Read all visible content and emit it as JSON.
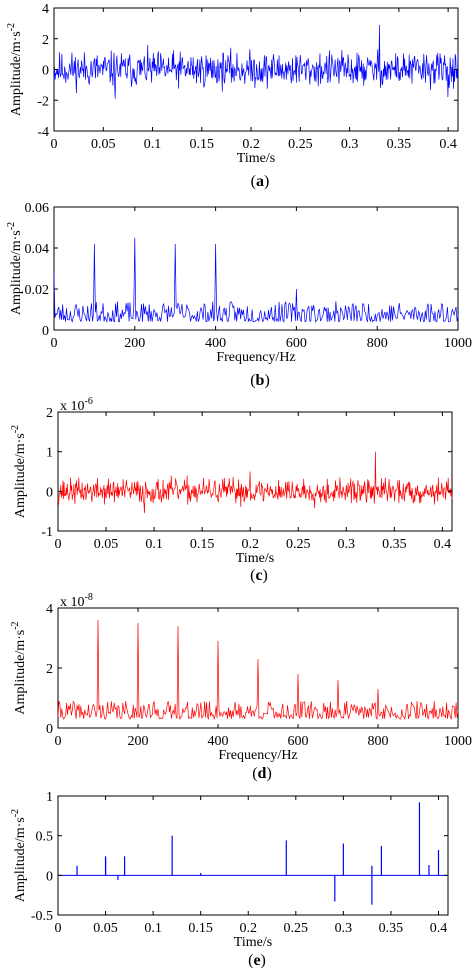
{
  "colors": {
    "blue": "#0000ff",
    "red": "#ff0000",
    "axis": "#000000"
  },
  "chart_data": [
    {
      "type": "line",
      "caption": "a",
      "signal": "noise",
      "color": "#0000ff",
      "xlabel": "Time/s",
      "ylabel": "Amplitude/m·s",
      "ylabel_exp": "-2",
      "multiplier": "",
      "multiplier_exp": "",
      "xlim": [
        0,
        0.41
      ],
      "ylim": [
        -4,
        4
      ],
      "xticks": [
        0,
        0.05,
        0.1,
        0.15,
        0.2,
        0.25,
        0.3,
        0.35,
        0.4
      ],
      "xtick_labels": [
        "0",
        "0.05",
        "0.1",
        "0.15",
        "0.2",
        "0.25",
        "0.3",
        "0.35",
        "0.4"
      ],
      "yticks": [
        -4,
        -2,
        0,
        2,
        4
      ],
      "ytick_labels": [
        "-4",
        "-2",
        "0",
        "2",
        "4"
      ],
      "noise": {
        "n": 720,
        "amp": 0.8,
        "seed": 11
      },
      "peaks": [
        [
          0.33,
          2.9
        ],
        [
          0.062,
          -1.9
        ],
        [
          0.4,
          -1.8
        ]
      ]
    },
    {
      "type": "line",
      "caption": "b",
      "signal": "spectrum",
      "color": "#0000ff",
      "xlabel": "Frequency/Hz",
      "ylabel": "Amplitude/m·s",
      "ylabel_exp": "-2",
      "multiplier": "",
      "multiplier_exp": "",
      "xlim": [
        0,
        1000
      ],
      "ylim": [
        0,
        0.06
      ],
      "xticks": [
        0,
        200,
        400,
        600,
        800,
        1000
      ],
      "xtick_labels": [
        "0",
        "200",
        "400",
        "600",
        "800",
        "1000"
      ],
      "yticks": [
        0,
        0.02,
        0.04,
        0.06
      ],
      "ytick_labels": [
        "0",
        "0.02",
        "0.04",
        "0.06"
      ],
      "noise": {
        "n": 420,
        "base": 0.004,
        "amp": 0.01,
        "seed": 23
      },
      "peaks": [
        [
          0,
          0.028
        ],
        [
          100,
          0.042
        ],
        [
          200,
          0.045
        ],
        [
          300,
          0.042
        ],
        [
          400,
          0.042
        ],
        [
          600,
          0.02
        ]
      ]
    },
    {
      "type": "line",
      "caption": "c",
      "signal": "noise",
      "color": "#ff0000",
      "xlabel": "Time/s",
      "ylabel": "Amplitude/m·s",
      "ylabel_exp": "-2",
      "multiplier": "x 10",
      "multiplier_exp": "-6",
      "xlim": [
        0,
        0.41
      ],
      "ylim": [
        -1,
        2
      ],
      "xticks": [
        0,
        0.05,
        0.1,
        0.15,
        0.2,
        0.25,
        0.3,
        0.35,
        0.4
      ],
      "xtick_labels": [
        "0",
        "0.05",
        "0.1",
        "0.15",
        "0.2",
        "0.25",
        "0.3",
        "0.35",
        "0.4"
      ],
      "yticks": [
        -1,
        0,
        1,
        2
      ],
      "ytick_labels": [
        "-1",
        "0",
        "1",
        "2"
      ],
      "noise": {
        "n": 720,
        "amp": 0.22,
        "seed": 37
      },
      "peaks": [
        [
          0.33,
          1.0
        ],
        [
          0.09,
          -0.55
        ],
        [
          0.2,
          0.5
        ]
      ]
    },
    {
      "type": "line",
      "caption": "d",
      "signal": "spectrum",
      "color": "#ff0000",
      "xlabel": "Frequency/Hz",
      "ylabel": "Amplitude/m·s",
      "ylabel_exp": "-2",
      "multiplier": "x 10",
      "multiplier_exp": "-8",
      "xlim": [
        0,
        1000
      ],
      "ylim": [
        0,
        4
      ],
      "xticks": [
        0,
        200,
        400,
        600,
        800,
        1000
      ],
      "xtick_labels": [
        "0",
        "200",
        "400",
        "600",
        "800",
        "1000"
      ],
      "yticks": [
        0,
        2,
        4
      ],
      "ytick_labels": [
        "0",
        "2",
        "4"
      ],
      "noise": {
        "n": 420,
        "base": 0.3,
        "amp": 0.6,
        "seed": 41
      },
      "peaks": [
        [
          100,
          3.6
        ],
        [
          200,
          3.5
        ],
        [
          300,
          3.4
        ],
        [
          400,
          2.9
        ],
        [
          500,
          2.3
        ],
        [
          600,
          1.8
        ],
        [
          700,
          1.6
        ],
        [
          800,
          1.3
        ]
      ]
    },
    {
      "type": "line",
      "caption": "e",
      "signal": "spikes",
      "color": "#0000ff",
      "xlabel": "Time/s",
      "ylabel": "Amplitude/m·s",
      "ylabel_exp": "-2",
      "multiplier": "",
      "multiplier_exp": "",
      "xlim": [
        0,
        0.41
      ],
      "ylim": [
        -0.5,
        1
      ],
      "xticks": [
        0,
        0.05,
        0.1,
        0.15,
        0.2,
        0.25,
        0.3,
        0.35,
        0.4
      ],
      "xtick_labels": [
        "0",
        "0.05",
        "0.1",
        "0.15",
        "0.2",
        "0.25",
        "0.3",
        "0.35",
        "0.4"
      ],
      "yticks": [
        -0.5,
        0,
        0.5,
        1
      ],
      "ytick_labels": [
        "-0.5",
        "0",
        "0.5",
        "1"
      ],
      "peaks": [
        [
          0.02,
          0.12
        ],
        [
          0.05,
          0.24
        ],
        [
          0.05,
          0.22
        ],
        [
          0.063,
          -0.06
        ],
        [
          0.07,
          0.24
        ],
        [
          0.12,
          0.5
        ],
        [
          0.15,
          0.03
        ],
        [
          0.24,
          0.44
        ],
        [
          0.291,
          -0.33
        ],
        [
          0.3,
          0.4
        ],
        [
          0.33,
          0.12
        ],
        [
          0.33,
          -0.37
        ],
        [
          0.34,
          0.37
        ],
        [
          0.38,
          0.92
        ],
        [
          0.39,
          0.13
        ],
        [
          0.4,
          0.32
        ]
      ]
    }
  ]
}
